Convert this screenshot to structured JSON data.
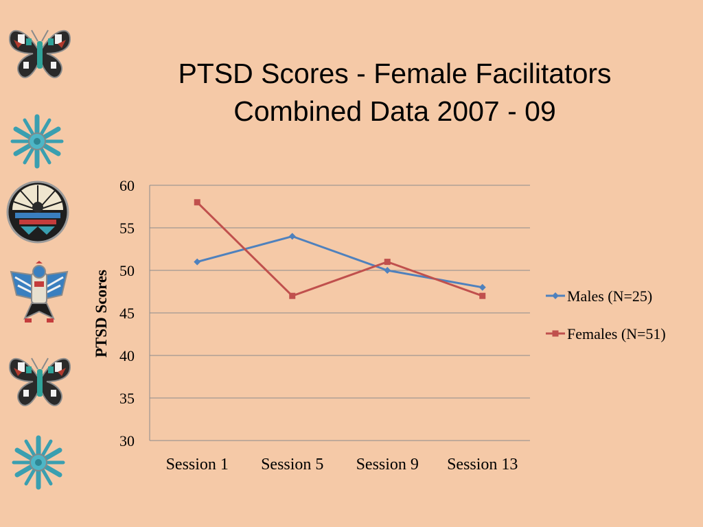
{
  "slide": {
    "title_line1": "PTSD Scores - Female Facilitators",
    "title_line2": "Combined Data 2007 - 09"
  },
  "ornaments": [
    "butterfly-pin-icon",
    "snowflake-pin-icon",
    "sun-face-pin-icon",
    "thunderbird-pin-icon",
    "butterfly-pin-icon",
    "snowflake-pin-icon"
  ],
  "chart_data": {
    "type": "line",
    "title": "",
    "xlabel": "",
    "ylabel": "PTSD Scores",
    "categories": [
      "Session 1",
      "Session 5",
      "Session 9",
      "Session 13"
    ],
    "ylim": [
      30,
      60
    ],
    "yticks": [
      30,
      35,
      40,
      45,
      50,
      55,
      60
    ],
    "grid": true,
    "legend_position": "right",
    "series": [
      {
        "name": "Males (N=25)",
        "values": [
          51,
          54,
          50,
          48
        ],
        "color": "#4f81bd",
        "marker": "diamond"
      },
      {
        "name": "Females (N=51)",
        "values": [
          58,
          47,
          51,
          47
        ],
        "color": "#c0504d",
        "marker": "square"
      }
    ]
  }
}
